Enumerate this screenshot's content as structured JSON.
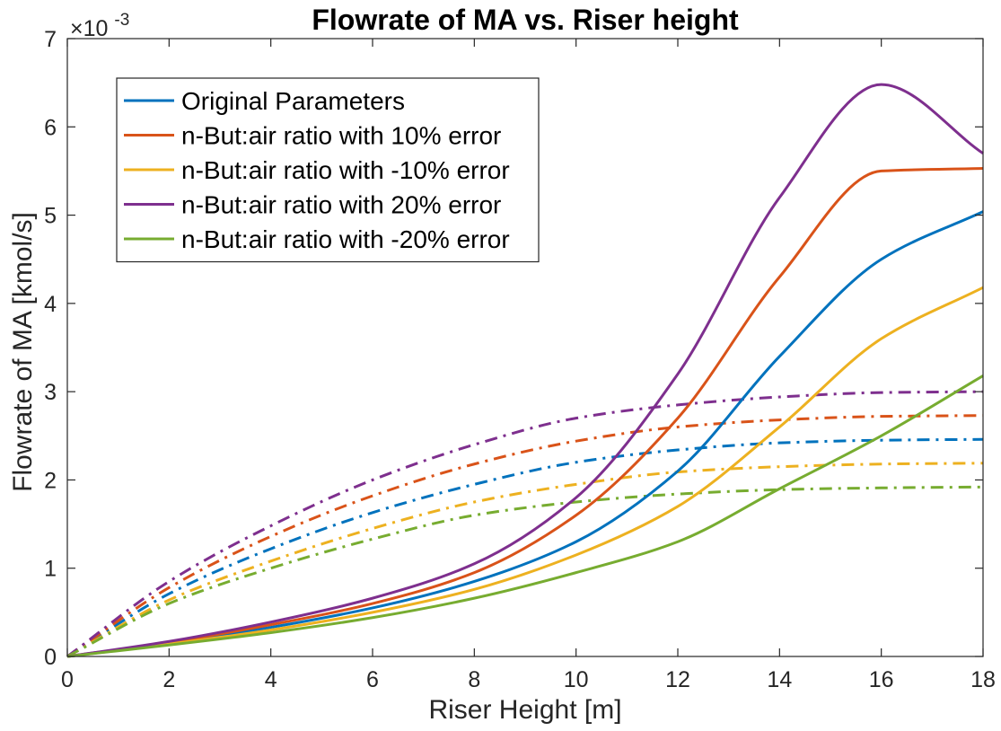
{
  "chart_data": {
    "type": "line",
    "title": "Flowrate of MA vs. Riser height",
    "xlabel": "Riser Height [m]",
    "ylabel": "Flowrate of MA [kmol/s]",
    "xlim": [
      0,
      18
    ],
    "ylim": [
      0,
      0.007
    ],
    "y_exponent_label": "×10",
    "y_exponent_power": "-3",
    "x_ticks": [
      "0",
      "2",
      "4",
      "6",
      "8",
      "10",
      "12",
      "14",
      "16",
      "18"
    ],
    "y_ticks": [
      "0",
      "1",
      "2",
      "3",
      "4",
      "5",
      "6",
      "7"
    ],
    "legend_position": "top-left",
    "grid": false,
    "x": [
      0,
      2,
      4,
      6,
      8,
      10,
      12,
      14,
      16,
      18
    ],
    "series": [
      {
        "name": "Original Parameters",
        "color": "#0072BD",
        "style": "solid",
        "values": [
          0,
          0.00015,
          0.00033,
          0.00055,
          0.00085,
          0.0013,
          0.0021,
          0.0034,
          0.0045,
          0.00504
        ]
      },
      {
        "name": "n-But:air ratio with 10% error",
        "color": "#D95319",
        "style": "solid",
        "values": [
          0,
          0.00016,
          0.00036,
          0.0006,
          0.00095,
          0.0016,
          0.0027,
          0.0043,
          0.0055,
          0.00553
        ]
      },
      {
        "name": "n-But:air ratio with -10% error",
        "color": "#EDB120",
        "style": "solid",
        "values": [
          0,
          0.00014,
          0.0003,
          0.0005,
          0.00076,
          0.00115,
          0.0017,
          0.0026,
          0.0036,
          0.00418
        ]
      },
      {
        "name": "n-But:air ratio with 20% error",
        "color": "#7E2F8E",
        "style": "solid",
        "values": [
          0,
          0.00017,
          0.00039,
          0.00066,
          0.00105,
          0.0018,
          0.0032,
          0.0052,
          0.00648,
          0.0057
        ]
      },
      {
        "name": "n-But:air ratio with -20% error",
        "color": "#77AC30",
        "style": "solid",
        "values": [
          0,
          0.00013,
          0.00027,
          0.00044,
          0.00066,
          0.00095,
          0.0013,
          0.0019,
          0.0025,
          0.00318
        ]
      },
      {
        "color": "#0072BD",
        "style": "dashdot",
        "values": [
          0,
          0.00071,
          0.00122,
          0.00163,
          0.00195,
          0.0022,
          0.00234,
          0.00242,
          0.00245,
          0.00246
        ]
      },
      {
        "color": "#D95319",
        "style": "dashdot",
        "values": [
          0,
          0.00078,
          0.00136,
          0.00182,
          0.00218,
          0.00244,
          0.0026,
          0.00268,
          0.00272,
          0.00273
        ]
      },
      {
        "color": "#EDB120",
        "style": "dashdot",
        "values": [
          0,
          0.00064,
          0.00108,
          0.00145,
          0.00175,
          0.00195,
          0.00209,
          0.00215,
          0.00218,
          0.00219
        ]
      },
      {
        "color": "#7E2F8E",
        "style": "dashdot",
        "values": [
          0,
          0.00085,
          0.00148,
          0.002,
          0.0024,
          0.0027,
          0.00285,
          0.00294,
          0.00299,
          0.003
        ]
      },
      {
        "color": "#77AC30",
        "style": "dashdot",
        "values": [
          0,
          0.0006,
          0.001,
          0.00133,
          0.0016,
          0.00175,
          0.00184,
          0.00189,
          0.00191,
          0.00192
        ]
      }
    ]
  }
}
